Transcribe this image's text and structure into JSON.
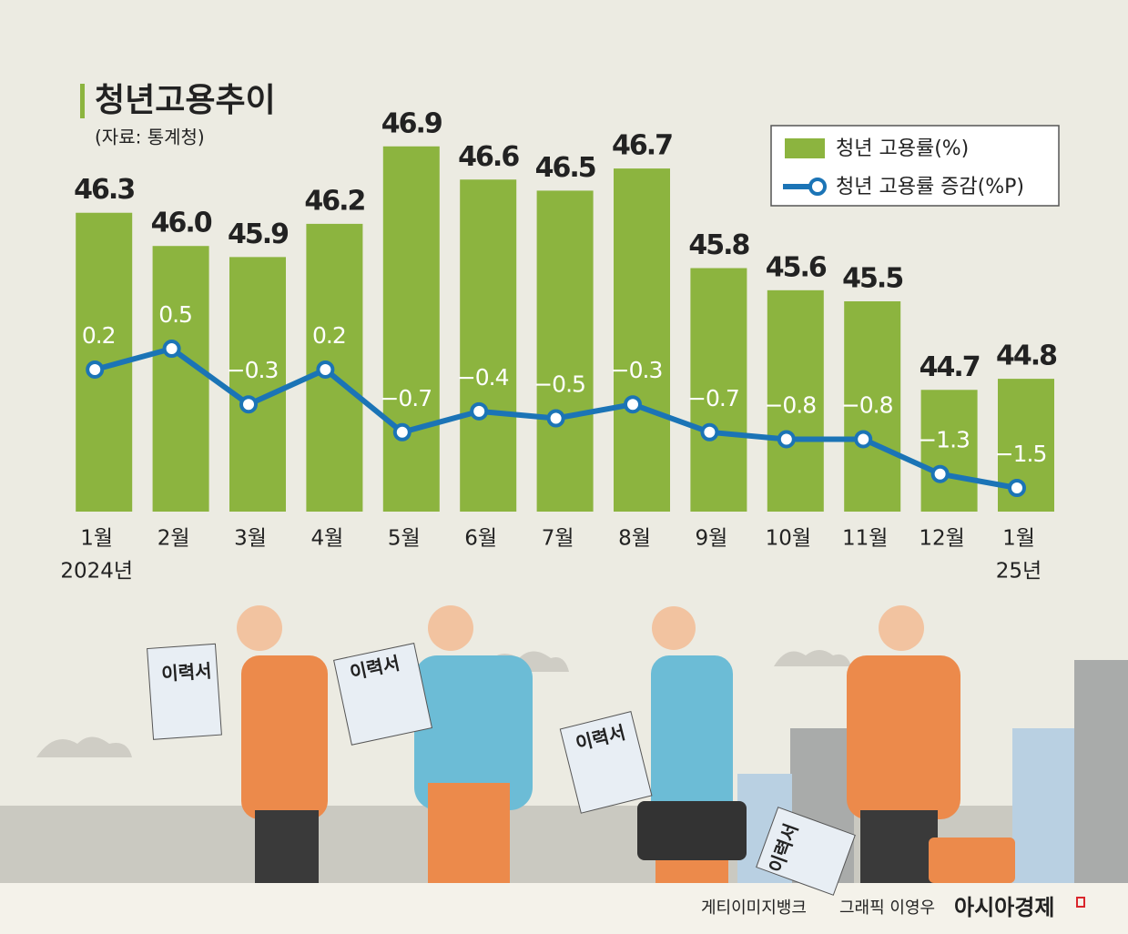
{
  "chart_data": {
    "type": "bar_line",
    "title": "청년고용추이",
    "subtitle": "(자료: 통계청)",
    "categories": [
      "1월",
      "2월",
      "3월",
      "4월",
      "5월",
      "6월",
      "7월",
      "8월",
      "9월",
      "10월",
      "11월",
      "12월",
      "1월"
    ],
    "year_labels": [
      "2024년",
      null,
      null,
      null,
      null,
      null,
      null,
      null,
      null,
      null,
      null,
      null,
      "25년"
    ],
    "series": [
      {
        "name": "청년 고용률(%)",
        "color": "#8cb43f",
        "values": [
          46.3,
          46.0,
          45.9,
          46.2,
          46.9,
          46.6,
          46.5,
          46.7,
          45.8,
          45.6,
          45.5,
          44.7,
          44.8
        ],
        "value_labels": [
          "46.3",
          "46.0",
          "45.9",
          "46.2",
          "46.9",
          "46.6",
          "46.5",
          "46.7",
          "45.8",
          "45.6",
          "45.5",
          "44.7",
          "44.8"
        ]
      },
      {
        "name": "청년 고용률 증감(%P)",
        "color": "#1b74b6",
        "axis": "y2",
        "values": [
          0.2,
          0.5,
          -0.3,
          0.2,
          -0.7,
          -0.4,
          -0.5,
          -0.3,
          -0.7,
          -0.8,
          -0.8,
          -1.3,
          -1.5
        ],
        "value_labels": [
          "0.2",
          "0.5",
          "−0.3",
          "0.2",
          "−0.7",
          "−0.4",
          "−0.5",
          "−0.3",
          "−0.7",
          "−0.8",
          "−0.8",
          "−1.3",
          "−1.5"
        ]
      }
    ],
    "ylim": [
      43.6,
      47.4
    ],
    "y2lim": [
      -1.84,
      4.2
    ],
    "legend": "top-right",
    "illustration_labels": [
      "이력서",
      "이력서",
      "이력서",
      "이력서"
    ],
    "credits": {
      "photo": "게티이미지뱅크",
      "graphic": "그래픽 이영우",
      "publisher": "아시아경제"
    }
  }
}
